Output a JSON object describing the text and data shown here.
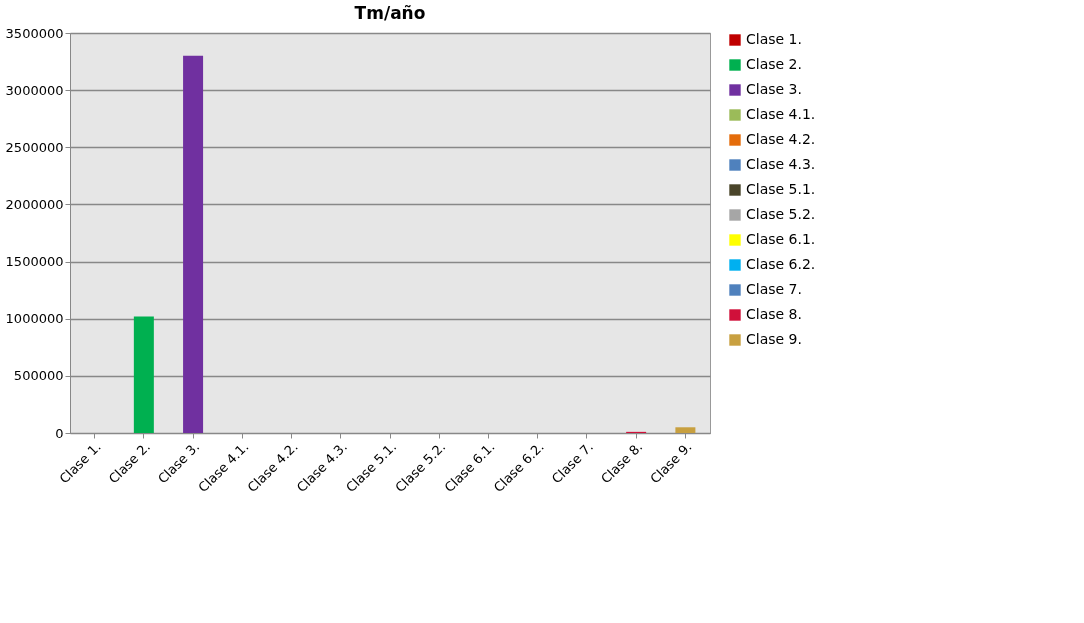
{
  "chart_data": {
    "type": "bar",
    "title": "Tm/año",
    "categories": [
      "Clase 1.",
      "Clase 2.",
      "Clase 3.",
      "Clase 4.1.",
      "Clase 4.2.",
      "Clase 4.3.",
      "Clase 5.1.",
      "Clase 5.2.",
      "Clase 6.1.",
      "Clase 6.2.",
      "Clase 7.",
      "Clase 8.",
      "Clase 9."
    ],
    "series": [
      {
        "name": "Clase 1.",
        "color": "#c00000",
        "values": [
          0,
          null,
          null,
          null,
          null,
          null,
          null,
          null,
          null,
          null,
          null,
          null,
          null
        ]
      },
      {
        "name": "Clase 2.",
        "color": "#00b050",
        "values": [
          null,
          1020000,
          null,
          null,
          null,
          null,
          null,
          null,
          null,
          null,
          null,
          null,
          null
        ]
      },
      {
        "name": "Clase 3.",
        "color": "#7030a0",
        "values": [
          null,
          null,
          3300000,
          null,
          null,
          null,
          null,
          null,
          null,
          null,
          null,
          null,
          null
        ]
      },
      {
        "name": "Clase 4.1.",
        "color": "#9bbb59",
        "values": [
          null,
          null,
          null,
          0,
          null,
          null,
          null,
          null,
          null,
          null,
          null,
          null,
          null
        ]
      },
      {
        "name": "Clase 4.2.",
        "color": "#e46c0a",
        "values": [
          null,
          null,
          null,
          null,
          0,
          null,
          null,
          null,
          null,
          null,
          null,
          null,
          null
        ]
      },
      {
        "name": "Clase 4.3.",
        "color": "#4f81bd",
        "values": [
          null,
          null,
          null,
          null,
          null,
          0,
          null,
          null,
          null,
          null,
          null,
          null,
          null
        ]
      },
      {
        "name": "Clase 5.1.",
        "color": "#4a452a",
        "values": [
          null,
          null,
          null,
          null,
          null,
          null,
          0,
          null,
          null,
          null,
          null,
          null,
          null
        ]
      },
      {
        "name": "Clase 5.2.",
        "color": "#a6a6a6",
        "values": [
          null,
          null,
          null,
          null,
          null,
          null,
          null,
          0,
          null,
          null,
          null,
          null,
          null
        ]
      },
      {
        "name": "Clase 6.1.",
        "color": "#ffff00",
        "values": [
          null,
          null,
          null,
          null,
          null,
          null,
          null,
          null,
          0,
          null,
          null,
          null,
          null
        ]
      },
      {
        "name": "Clase 6.2.",
        "color": "#00b0f0",
        "values": [
          null,
          null,
          null,
          null,
          null,
          null,
          null,
          null,
          null,
          0,
          null,
          null,
          null
        ]
      },
      {
        "name": "Clase 7.",
        "color": "#4f81bd",
        "values": [
          null,
          null,
          null,
          null,
          null,
          null,
          null,
          null,
          null,
          null,
          0,
          null,
          null
        ]
      },
      {
        "name": "Clase 8.",
        "color": "#d0103a",
        "values": [
          null,
          null,
          null,
          null,
          null,
          null,
          null,
          null,
          null,
          null,
          null,
          10000,
          null
        ]
      },
      {
        "name": "Clase 9.",
        "color": "#c8a040",
        "values": [
          null,
          null,
          null,
          null,
          null,
          null,
          null,
          null,
          null,
          null,
          null,
          null,
          50000
        ]
      }
    ],
    "ylim": [
      0,
      3500000
    ],
    "yticks": [
      0,
      500000,
      1000000,
      1500000,
      2000000,
      2500000,
      3000000,
      3500000
    ],
    "grid": "y",
    "legend": "right"
  }
}
